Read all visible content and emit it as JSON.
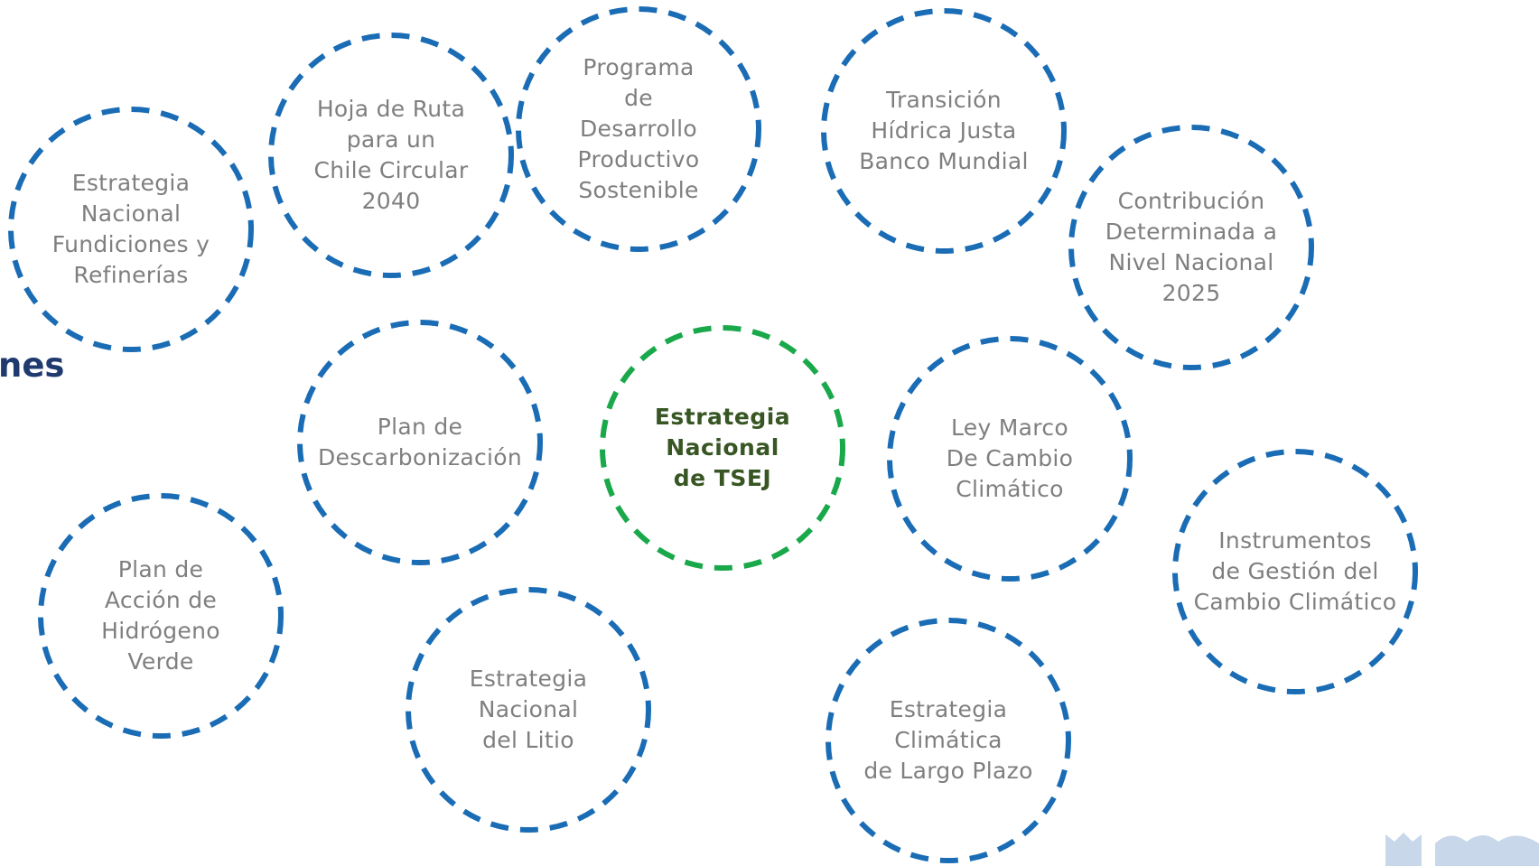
{
  "side_heading": "nes",
  "colors": {
    "ring_blue": "#1a6cb5",
    "ring_green": "#19a84a",
    "node_text": "#7f7f7f",
    "center_text": "#375623",
    "heading": "#1f3a6e",
    "logo": "#c9d7ea"
  },
  "nodes": [
    {
      "id": "fundiciones",
      "text": "Estrategia\nNacional\nFundiciones y\nRefinerías"
    },
    {
      "id": "hoja-ruta",
      "text": "Hoja de Ruta\npara un\nChile Circular\n2040"
    },
    {
      "id": "programa",
      "text": "Programa\nde\nDesarrollo\nProductivo\nSostenible"
    },
    {
      "id": "transicion",
      "text": "Transición\nHídrica Justa\nBanco Mundial"
    },
    {
      "id": "contribucion",
      "text": "Contribución\nDeterminada a\nNivel Nacional\n2025"
    },
    {
      "id": "descarbonizacion",
      "text": "Plan de\nDescarbonización"
    },
    {
      "id": "tsej",
      "text": "Estrategia\nNacional\nde TSEJ",
      "center": true
    },
    {
      "id": "ley-marco",
      "text": "Ley Marco\nDe Cambio\nClimático"
    },
    {
      "id": "instrumentos",
      "text": "Instrumentos\nde Gestión del\nCambio Climático"
    },
    {
      "id": "hidrogeno",
      "text": "Plan de\nAcción de\nHidrógeno\nVerde"
    },
    {
      "id": "litio",
      "text": "Estrategia\nNacional\ndel Litio"
    },
    {
      "id": "largo-plazo",
      "text": "Estrategia\nClimática\nde Largo Plazo"
    }
  ]
}
